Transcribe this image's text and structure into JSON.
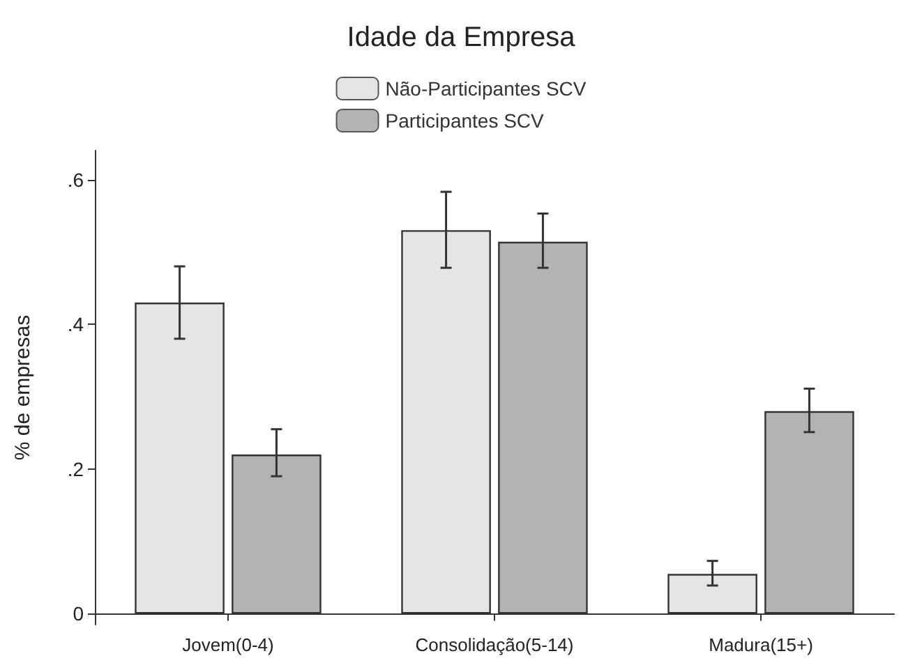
{
  "chart_data": {
    "type": "bar",
    "title": "Idade da Empresa",
    "ylabel": "% de empresas",
    "categories": [
      "Jovem(0-4)",
      "Consolidação(5-14)",
      "Madura(15+)"
    ],
    "series": [
      {
        "name": "Não-Participantes SCV",
        "color": "#e5e5e5",
        "values": [
          0.43,
          0.53,
          0.055
        ],
        "errors": [
          [
            0.38,
            0.48
          ],
          [
            0.478,
            0.583
          ],
          [
            0.039,
            0.073
          ]
        ]
      },
      {
        "name": "Participantes SCV",
        "color": "#b3b3b3",
        "values": [
          0.22,
          0.514,
          0.28
        ],
        "errors": [
          [
            0.19,
            0.255
          ],
          [
            0.478,
            0.553
          ],
          [
            0.251,
            0.311
          ]
        ]
      }
    ],
    "ylim": [
      -0.015,
      0.64
    ],
    "yticks": [
      {
        "value": 0,
        "label": "0"
      },
      {
        "value": 0.2,
        "label": ".2"
      },
      {
        "value": 0.4,
        "label": ".4"
      },
      {
        "value": 0.6,
        "label": ".6"
      }
    ],
    "grid": false,
    "legend": "top"
  }
}
